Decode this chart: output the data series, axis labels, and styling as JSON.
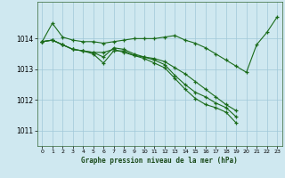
{
  "bg_color": "#cfe8f0",
  "grid_color": "#a0c8d8",
  "line_color": "#1a6b1a",
  "xlabel": "Graphe pression niveau de la mer (hPa)",
  "ylim": [
    1010.5,
    1015.2
  ],
  "xlim": [
    -0.5,
    23.5
  ],
  "yticks": [
    1011,
    1012,
    1013,
    1014
  ],
  "xticks": [
    0,
    1,
    2,
    3,
    4,
    5,
    6,
    7,
    8,
    9,
    10,
    11,
    12,
    13,
    14,
    15,
    16,
    17,
    18,
    19,
    20,
    21,
    22,
    23
  ],
  "series": [
    [
      1013.9,
      1014.5,
      1014.05,
      1013.95,
      1013.9,
      1013.9,
      1013.85,
      1013.9,
      1013.95,
      1014.0,
      1014.0,
      1014.0,
      1014.05,
      1014.1,
      1013.95,
      1013.85,
      1013.7,
      1013.5,
      1013.3,
      1013.1,
      1012.9,
      1013.8,
      1014.2,
      1014.7
    ],
    [
      1013.9,
      1013.95,
      1013.8,
      1013.65,
      1013.6,
      1013.55,
      1013.55,
      1013.65,
      1013.55,
      1013.45,
      1013.4,
      1013.35,
      1013.25,
      1013.05,
      1012.85,
      1012.6,
      1012.35,
      1012.1,
      1011.85,
      1011.65,
      null,
      null,
      null,
      null
    ],
    [
      1013.9,
      1013.95,
      1013.8,
      1013.65,
      1013.6,
      1013.55,
      1013.4,
      1013.7,
      1013.65,
      1013.5,
      1013.4,
      1013.3,
      1013.15,
      1012.8,
      1012.5,
      1012.25,
      1012.1,
      1011.9,
      1011.75,
      1011.45,
      null,
      null,
      null,
      null
    ],
    [
      1013.9,
      1013.95,
      1013.8,
      1013.65,
      1013.6,
      1013.5,
      1013.2,
      1013.6,
      1013.6,
      1013.45,
      1013.35,
      1013.2,
      1013.05,
      1012.7,
      1012.35,
      1012.05,
      1011.85,
      1011.75,
      1011.6,
      1011.25,
      null,
      null,
      null,
      null
    ]
  ]
}
